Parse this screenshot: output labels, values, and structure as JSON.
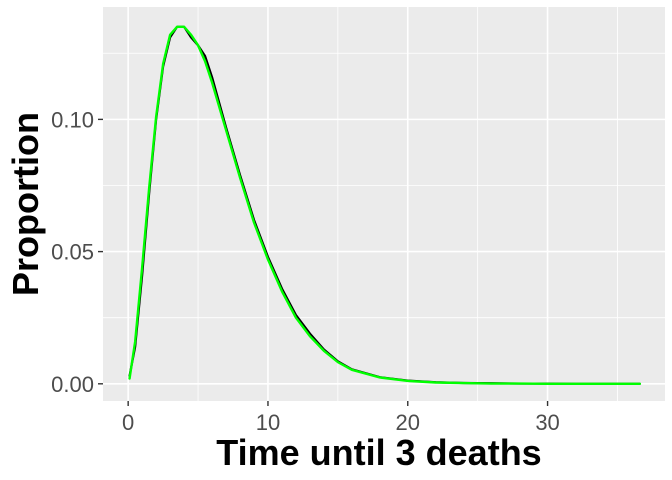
{
  "chart_data": {
    "type": "line",
    "title": "",
    "xlabel": "Time until 3 deaths",
    "ylabel": "Proportion",
    "xlim": [
      -1.8,
      38.4
    ],
    "ylim": [
      -0.0065,
      0.1425
    ],
    "x_ticks": [
      0,
      10,
      20,
      30
    ],
    "x_tick_labels": [
      "0",
      "10",
      "20",
      "30"
    ],
    "y_ticks": [
      0.0,
      0.05,
      0.1
    ],
    "y_tick_labels": [
      "0.00",
      "0.05",
      "0.10"
    ],
    "grid": true,
    "legend": "none",
    "background": "#EBEBEB",
    "series": [
      {
        "color": "#000000",
        "x": [
          0.1,
          0.5,
          1,
          1.5,
          2,
          2.5,
          3,
          3.5,
          4,
          4.5,
          5,
          5.5,
          6,
          7,
          8,
          9,
          10,
          11,
          12,
          13,
          14,
          15,
          16,
          18,
          20,
          22,
          24,
          26,
          28,
          30,
          32,
          34,
          36.6
        ],
        "y": [
          0.003,
          0.014,
          0.041,
          0.072,
          0.1,
          0.12,
          0.131,
          0.135,
          0.135,
          0.131,
          0.128,
          0.124,
          0.116,
          0.097,
          0.079,
          0.062,
          0.048,
          0.036,
          0.026,
          0.019,
          0.013,
          0.0085,
          0.0055,
          0.0025,
          0.0012,
          0.0006,
          0.0003,
          0.0002,
          0.0001,
          0.0001,
          0.0,
          0.0,
          0.0
        ]
      },
      {
        "color": "#00FF00",
        "x": [
          0.1,
          0.5,
          1,
          1.5,
          2,
          2.5,
          3,
          3.5,
          4,
          4.5,
          5,
          5.5,
          6,
          7,
          8,
          9,
          10,
          11,
          12,
          13,
          14,
          15,
          16,
          18,
          20,
          22,
          24,
          26,
          28,
          30,
          32,
          34,
          36.6
        ],
        "y": [
          0.002,
          0.016,
          0.044,
          0.074,
          0.101,
          0.121,
          0.132,
          0.135,
          0.135,
          0.132,
          0.128,
          0.122,
          0.114,
          0.096,
          0.078,
          0.061,
          0.047,
          0.035,
          0.025,
          0.018,
          0.0125,
          0.0082,
          0.0053,
          0.0024,
          0.0011,
          0.0005,
          0.0003,
          0.0001,
          0.0001,
          0.0,
          0.0,
          0.0,
          0.0
        ]
      }
    ]
  }
}
